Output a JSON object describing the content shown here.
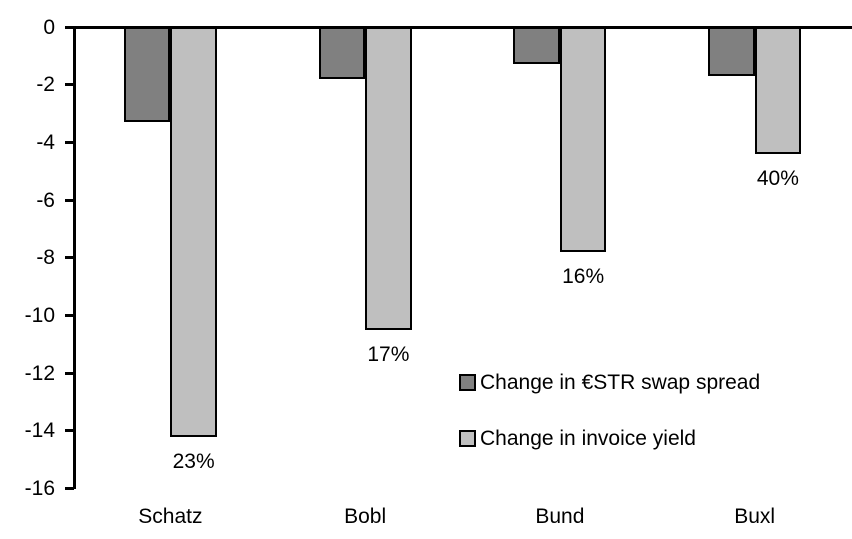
{
  "chart_data": {
    "type": "bar",
    "title": "",
    "xlabel": "",
    "ylabel": "",
    "categories": [
      "Schatz",
      "Bobl",
      "Bund",
      "Buxl"
    ],
    "series": [
      {
        "name": "Change in €STR swap spread",
        "color": "#808080",
        "values": [
          -3.3,
          -1.8,
          -1.3,
          -1.7
        ]
      },
      {
        "name": "Change in invoice yield",
        "color": "#BFBFBF",
        "values": [
          -14.2,
          -10.5,
          -7.8,
          -4.4
        ]
      }
    ],
    "bar_labels": {
      "series_index": 1,
      "values": [
        "23%",
        "17%",
        "16%",
        "40%"
      ]
    },
    "ylim": [
      -16,
      0
    ],
    "yticks": [
      0,
      -2,
      -4,
      -6,
      -8,
      -10,
      -12,
      -14,
      -16
    ],
    "grid": false,
    "legend_position": "inside-right-middle",
    "bar_border_color": "#000000",
    "axis_color": "#000000",
    "background_color": "#FFFFFF"
  }
}
